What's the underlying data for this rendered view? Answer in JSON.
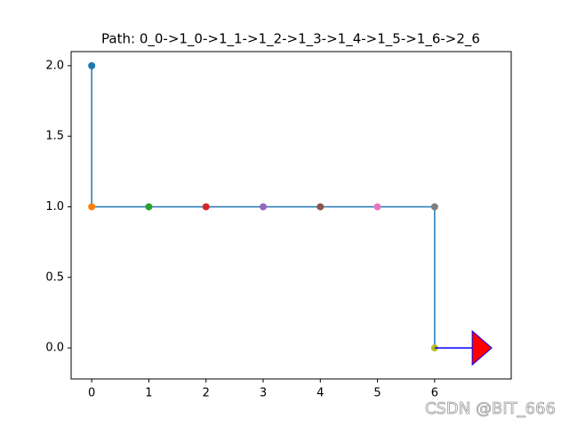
{
  "chart_data": {
    "type": "line",
    "title": "Path: 0_0->1_0->1_1->1_2->1_3->1_4->1_5->1_6->2_6",
    "x": [
      0,
      0,
      1,
      2,
      3,
      4,
      5,
      6,
      6
    ],
    "series": [
      {
        "color": "#1f77b4",
        "values": [
          2,
          1,
          1,
          1,
          1,
          1,
          1,
          1,
          0
        ],
        "marker_colors": [
          "#1f77b4",
          "#ff7f0e",
          "#2ca02c",
          "#d62728",
          "#9467bd",
          "#8c564b",
          "#e377c2",
          "#7f7f7f",
          "#bcbd22"
        ]
      }
    ],
    "arrow": {
      "x": [
        6,
        7
      ],
      "y": [
        0,
        0
      ],
      "color": "#0000ff",
      "head_color": "#ff0000"
    },
    "xlim": [
      -0.36,
      7.34
    ],
    "ylim": [
      -0.22,
      2.1
    ],
    "xticks": [
      0,
      1,
      2,
      3,
      4,
      5,
      6
    ],
    "yticks": [
      {
        "value": 0,
        "label": "0.0"
      },
      {
        "value": 0.5,
        "label": "0.5"
      },
      {
        "value": 1,
        "label": "1.0"
      },
      {
        "value": 1.5,
        "label": "1.5"
      },
      {
        "value": 2,
        "label": "2.0"
      }
    ],
    "watermark": "CSDN @BIT_666"
  }
}
